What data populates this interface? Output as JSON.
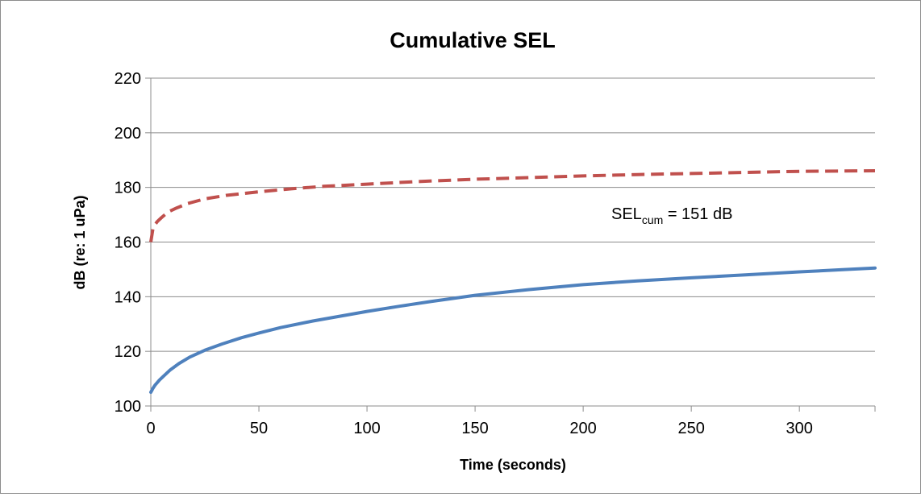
{
  "chart_data": {
    "type": "line",
    "title": "Cumulative SEL",
    "xlabel": "Time (seconds)",
    "ylabel": "dB (re: 1 uPa)",
    "xlim": [
      0,
      335
    ],
    "ylim": [
      100,
      220
    ],
    "x_ticks": [
      0,
      50,
      100,
      150,
      200,
      250,
      300
    ],
    "y_ticks": [
      100,
      120,
      140,
      160,
      180,
      200,
      220
    ],
    "grid": "horizontal",
    "legend": "none",
    "series": [
      {
        "color": "#c0504d",
        "style": "dashed",
        "points": [
          [
            0,
            160
          ],
          [
            1,
            165
          ],
          [
            2,
            166.5
          ],
          [
            3,
            167.5
          ],
          [
            5,
            169
          ],
          [
            8,
            171
          ],
          [
            12,
            172.5
          ],
          [
            17,
            174.1
          ],
          [
            25,
            175.8
          ],
          [
            35,
            177.1
          ],
          [
            50,
            178.4
          ],
          [
            65,
            179.5
          ],
          [
            80,
            180.4
          ],
          [
            100,
            181.2
          ],
          [
            125,
            182.2
          ],
          [
            150,
            183.0
          ],
          [
            175,
            183.6
          ],
          [
            200,
            184.2
          ],
          [
            225,
            184.7
          ],
          [
            250,
            185.1
          ],
          [
            275,
            185.5
          ],
          [
            300,
            185.9
          ],
          [
            335,
            186.1
          ]
        ]
      },
      {
        "color": "#4f81bd",
        "style": "solid",
        "points": [
          [
            0,
            105
          ],
          [
            1,
            106.5
          ],
          [
            2,
            107.7
          ],
          [
            4,
            109.5
          ],
          [
            6,
            111
          ],
          [
            9,
            113.2
          ],
          [
            13,
            115.5
          ],
          [
            18,
            117.9
          ],
          [
            25,
            120.4
          ],
          [
            33,
            122.7
          ],
          [
            42,
            125
          ],
          [
            50,
            126.7
          ],
          [
            60,
            128.7
          ],
          [
            75,
            131.1
          ],
          [
            90,
            133.2
          ],
          [
            100,
            134.6
          ],
          [
            115,
            136.5
          ],
          [
            130,
            138.3
          ],
          [
            150,
            140.5
          ],
          [
            175,
            142.6
          ],
          [
            200,
            144.4
          ],
          [
            225,
            145.8
          ],
          [
            250,
            146.9
          ],
          [
            275,
            148
          ],
          [
            300,
            149.1
          ],
          [
            320,
            149.9
          ],
          [
            335,
            150.5
          ]
        ]
      }
    ],
    "annotation": {
      "main": "SEL",
      "sub": "cum",
      "rest": " = 151 dB",
      "x": 213,
      "y": 168.4
    }
  }
}
